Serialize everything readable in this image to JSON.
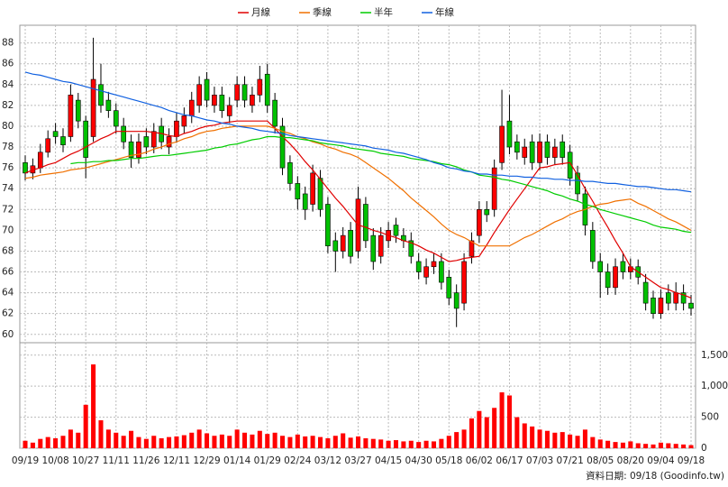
{
  "chart_data": {
    "type": "candlestick",
    "categories": [
      "09/19",
      null,
      null,
      null,
      "10/08",
      null,
      null,
      null,
      "10/27",
      null,
      null,
      null,
      "11/11",
      null,
      null,
      null,
      "11/26",
      null,
      null,
      null,
      "12/11",
      null,
      null,
      null,
      "12/29",
      null,
      null,
      null,
      "01/14",
      null,
      null,
      null,
      "01/29",
      null,
      null,
      null,
      "02/24",
      null,
      null,
      null,
      "03/12",
      null,
      null,
      null,
      "03/27",
      null,
      null,
      null,
      "04/15",
      null,
      null,
      null,
      "04/30",
      null,
      null,
      null,
      "05/18",
      null,
      null,
      null,
      "06/02",
      null,
      null,
      null,
      "06/17",
      null,
      null,
      null,
      "07/03",
      null,
      null,
      null,
      "07/21",
      null,
      null,
      null,
      "08/05",
      null,
      null,
      null,
      "08/20",
      null,
      null,
      null,
      "09/04",
      null,
      null,
      null,
      "09/18"
    ],
    "open": [
      76.5,
      75.5,
      76.0,
      77.5,
      79.5,
      79.0,
      79.0,
      82.5,
      80.5,
      79.0,
      84.0,
      82.5,
      81.5,
      80.0,
      78.5,
      77.0,
      79.0,
      78.0,
      80.0,
      78.0,
      79.0,
      80.0,
      81.0,
      82.0,
      84.5,
      82.0,
      83.0,
      81.0,
      82.5,
      84.0,
      82.0,
      83.0,
      85.0,
      82.5,
      80.0,
      76.5,
      74.5,
      73.5,
      72.5,
      75.0,
      72.5,
      69.0,
      68.0,
      70.0,
      68.0,
      72.5,
      69.5,
      67.5,
      69.0,
      70.5,
      69.5,
      69.0,
      67.0,
      65.5,
      66.5,
      67.0,
      65.5,
      64.0,
      63.0,
      67.5,
      69.5,
      72.0,
      72.0,
      76.5,
      80.5,
      78.5,
      77.0,
      78.5,
      76.5,
      78.5,
      77.0,
      78.5,
      77.5,
      75.5,
      73.5,
      70.0,
      67.0,
      66.0,
      64.5,
      67.0,
      66.0,
      66.5,
      65.0,
      63.5,
      62.0,
      64.0,
      63.0,
      64.0,
      63.0
    ],
    "high": [
      77.2,
      76.9,
      78.3,
      79.6,
      80.3,
      79.8,
      84.0,
      83.2,
      81.0,
      88.5,
      86.0,
      83.3,
      82.2,
      80.8,
      79.2,
      79.3,
      79.8,
      80.3,
      80.8,
      79.8,
      81.3,
      81.8,
      83.3,
      84.8,
      85.2,
      83.8,
      83.8,
      82.8,
      84.8,
      84.8,
      83.8,
      85.8,
      86.0,
      83.2,
      80.8,
      77.2,
      75.2,
      74.2,
      76.3,
      75.8,
      73.2,
      69.8,
      70.3,
      70.8,
      74.2,
      73.2,
      70.2,
      70.3,
      70.8,
      71.2,
      70.2,
      69.8,
      67.8,
      67.3,
      67.8,
      67.8,
      66.2,
      64.8,
      67.8,
      69.8,
      72.8,
      72.8,
      76.8,
      83.5,
      83.0,
      79.2,
      78.8,
      79.2,
      79.3,
      79.2,
      78.8,
      79.2,
      78.2,
      76.2,
      74.2,
      70.8,
      67.8,
      66.8,
      67.3,
      67.8,
      67.3,
      67.2,
      65.8,
      64.2,
      64.3,
      64.8,
      65.0,
      64.8,
      63.8
    ],
    "low": [
      74.8,
      74.9,
      75.5,
      77.0,
      78.3,
      77.5,
      78.5,
      79.8,
      75.0,
      78.5,
      81.3,
      80.8,
      79.3,
      77.8,
      76.0,
      76.4,
      77.3,
      77.4,
      77.8,
      77.3,
      78.4,
      79.3,
      80.3,
      81.3,
      81.8,
      81.3,
      80.8,
      80.3,
      81.8,
      81.8,
      81.3,
      82.3,
      81.3,
      79.3,
      75.3,
      73.8,
      72.0,
      71.0,
      71.8,
      71.3,
      67.8,
      66.0,
      67.3,
      66.8,
      67.3,
      68.3,
      66.2,
      66.8,
      68.3,
      68.8,
      68.3,
      66.8,
      65.3,
      64.8,
      65.8,
      64.3,
      62.8,
      60.7,
      62.3,
      66.8,
      68.8,
      70.8,
      71.3,
      75.8,
      77.3,
      76.8,
      76.3,
      75.8,
      75.8,
      76.3,
      76.3,
      76.3,
      74.3,
      72.8,
      69.5,
      66.3,
      63.5,
      63.8,
      63.8,
      65.3,
      65.3,
      64.8,
      62.3,
      61.5,
      61.5,
      62.3,
      62.3,
      62.3,
      61.8
    ],
    "close": [
      75.5,
      76.2,
      77.5,
      78.8,
      79.0,
      78.2,
      83.0,
      80.5,
      77.0,
      84.5,
      82.0,
      81.5,
      80.0,
      78.5,
      77.0,
      78.5,
      78.0,
      79.5,
      78.5,
      79.0,
      80.5,
      81.0,
      82.5,
      84.0,
      82.5,
      83.0,
      81.5,
      82.0,
      84.0,
      82.5,
      83.0,
      84.5,
      82.0,
      80.0,
      76.0,
      74.5,
      73.0,
      72.0,
      75.5,
      72.0,
      68.5,
      68.0,
      69.5,
      67.5,
      73.0,
      69.0,
      67.0,
      69.5,
      70.0,
      69.5,
      69.0,
      67.5,
      66.0,
      66.5,
      67.0,
      65.0,
      63.5,
      62.5,
      67.0,
      69.0,
      72.0,
      71.5,
      76.0,
      80.0,
      78.0,
      77.5,
      78.0,
      76.5,
      78.5,
      77.0,
      78.0,
      77.0,
      75.0,
      73.5,
      70.5,
      67.0,
      66.0,
      64.5,
      66.5,
      66.0,
      66.5,
      65.5,
      63.0,
      62.0,
      63.5,
      63.0,
      64.0,
      63.0,
      62.5
    ],
    "volume": [
      120,
      90,
      150,
      180,
      160,
      200,
      300,
      250,
      700,
      1350,
      450,
      300,
      250,
      200,
      280,
      180,
      150,
      200,
      160,
      180,
      190,
      210,
      250,
      300,
      240,
      200,
      220,
      200,
      300,
      250,
      220,
      280,
      230,
      250,
      200,
      180,
      220,
      190,
      200,
      180,
      160,
      200,
      240,
      170,
      190,
      160,
      150,
      140,
      120,
      130,
      110,
      120,
      100,
      120,
      110,
      150,
      200,
      260,
      300,
      480,
      600,
      500,
      650,
      900,
      850,
      500,
      400,
      350,
      300,
      280,
      250,
      260,
      220,
      200,
      300,
      180,
      140,
      120,
      100,
      90,
      110,
      80,
      70,
      60,
      90,
      80,
      70,
      60,
      50
    ],
    "up_color": "#ff0000",
    "down_color": "#00c000",
    "volume_color": "#ff0000",
    "ylim": [
      59.2,
      89.7
    ],
    "yticks": [
      60,
      62,
      64,
      66,
      68,
      70,
      72,
      74,
      76,
      78,
      80,
      82,
      84,
      86,
      88
    ],
    "y2lim": [
      0,
      1700
    ],
    "y2ticks": [
      0,
      500,
      {
        "value": 1000,
        "label": "1,000"
      },
      {
        "value": 1500,
        "label": "1,500"
      }
    ],
    "grid": true,
    "legend": "top",
    "series": [
      {
        "name": "月線",
        "color": "#e00000",
        "values": [
          75.5,
          75.8,
          76.0,
          76.3,
          76.5,
          76.9,
          77.3,
          77.6,
          78.0,
          78.4,
          78.8,
          79.1,
          79.5,
          79.5,
          79.5,
          79.5,
          79.5,
          79.4,
          79.3,
          79.1,
          79.0,
          79.3,
          79.5,
          79.8,
          80.0,
          80.1,
          80.3,
          80.4,
          80.5,
          80.5,
          80.5,
          80.5,
          80.5,
          79.8,
          79.0,
          78.3,
          77.5,
          76.6,
          75.8,
          74.9,
          74.0,
          73.1,
          72.3,
          71.4,
          70.5,
          70.3,
          70.0,
          69.8,
          69.5,
          69.3,
          69.0,
          68.8,
          68.5,
          68.1,
          67.8,
          67.4,
          67.0,
          67.1,
          67.3,
          67.4,
          67.5,
          68.6,
          69.8,
          70.9,
          72.0,
          73.0,
          74.0,
          75.0,
          76.0,
          76.1,
          76.3,
          76.4,
          76.5,
          75.3,
          74.0,
          72.8,
          71.5,
          70.3,
          69.0,
          67.8,
          66.5,
          66.0,
          65.5,
          65.0,
          64.5,
          64.3,
          64.0,
          63.8,
          63.5
        ]
      },
      {
        "name": "季線",
        "color": "#f07000",
        "values": [
          75.0,
          75.1,
          75.3,
          75.4,
          75.5,
          75.6,
          75.8,
          75.9,
          76.0,
          76.2,
          76.4,
          76.6,
          76.8,
          77.0,
          77.2,
          77.3,
          77.5,
          77.8,
          78.0,
          78.3,
          78.5,
          78.8,
          79.0,
          79.3,
          79.5,
          79.6,
          79.8,
          79.9,
          80.0,
          80.0,
          80.0,
          80.0,
          80.0,
          79.8,
          79.5,
          79.3,
          79.0,
          78.8,
          78.5,
          78.3,
          78.0,
          77.8,
          77.5,
          77.3,
          77.0,
          76.5,
          76.0,
          75.5,
          75.0,
          74.4,
          73.8,
          73.1,
          72.5,
          71.9,
          71.3,
          70.6,
          70.0,
          69.6,
          69.3,
          68.9,
          68.5,
          68.5,
          68.5,
          68.5,
          68.5,
          68.9,
          69.3,
          69.6,
          70.0,
          70.4,
          70.8,
          71.1,
          71.5,
          71.8,
          72.0,
          72.3,
          72.5,
          72.6,
          72.8,
          72.9,
          73.0,
          72.6,
          72.3,
          71.9,
          71.5,
          71.1,
          70.8,
          70.4,
          70.0
        ]
      },
      {
        "name": "半年",
        "color": "#00cc00",
        "values": [
          null,
          null,
          null,
          null,
          null,
          null,
          76.4,
          76.5,
          76.5,
          76.6,
          76.6,
          76.7,
          76.7,
          76.8,
          76.9,
          76.9,
          77.0,
          77.1,
          77.2,
          77.2,
          77.3,
          77.4,
          77.5,
          77.6,
          77.7,
          77.9,
          78.0,
          78.2,
          78.3,
          78.5,
          78.7,
          78.8,
          79.0,
          79.0,
          78.9,
          78.9,
          78.8,
          78.7,
          78.6,
          78.4,
          78.3,
          78.2,
          78.1,
          77.9,
          77.8,
          77.7,
          77.6,
          77.4,
          77.3,
          77.2,
          77.1,
          76.9,
          76.8,
          76.7,
          76.6,
          76.4,
          76.3,
          76.1,
          75.8,
          75.6,
          75.3,
          75.2,
          75.1,
          74.9,
          74.8,
          74.6,
          74.4,
          74.2,
          74.0,
          73.8,
          73.5,
          73.3,
          73.0,
          72.8,
          72.5,
          72.3,
          72.0,
          71.8,
          71.6,
          71.4,
          71.2,
          71.0,
          70.8,
          70.5,
          70.3,
          70.2,
          70.1,
          69.9,
          69.8
        ]
      },
      {
        "name": "年線",
        "color": "#1060e0",
        "values": [
          85.2,
          85.0,
          84.9,
          84.7,
          84.5,
          84.3,
          84.2,
          84.0,
          83.8,
          83.6,
          83.4,
          83.2,
          83.0,
          82.8,
          82.6,
          82.4,
          82.2,
          82.0,
          81.8,
          81.5,
          81.3,
          81.1,
          81.0,
          80.8,
          80.6,
          80.5,
          80.3,
          80.2,
          80.0,
          79.9,
          79.8,
          79.6,
          79.5,
          79.4,
          79.3,
          79.1,
          79.0,
          78.9,
          78.8,
          78.7,
          78.6,
          78.5,
          78.4,
          78.3,
          78.2,
          78.1,
          77.9,
          77.8,
          77.7,
          77.5,
          77.4,
          77.2,
          77.0,
          76.8,
          76.5,
          76.3,
          76.0,
          75.9,
          75.7,
          75.6,
          75.4,
          75.4,
          75.3,
          75.3,
          75.2,
          75.2,
          75.1,
          75.1,
          75.0,
          75.0,
          74.9,
          74.9,
          74.8,
          74.8,
          74.7,
          74.7,
          74.6,
          74.5,
          74.5,
          74.4,
          74.3,
          74.2,
          74.2,
          74.1,
          74.0,
          73.9,
          73.9,
          73.8,
          73.7
        ]
      }
    ],
    "footnote": "資料日期: 09/18 (Goodinfo.tw)"
  }
}
